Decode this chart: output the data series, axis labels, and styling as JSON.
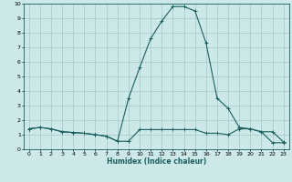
{
  "xlabel": "Humidex (Indice chaleur)",
  "xlim": [
    -0.5,
    23.5
  ],
  "ylim": [
    0,
    10
  ],
  "xticks": [
    0,
    1,
    2,
    3,
    4,
    5,
    6,
    7,
    8,
    9,
    10,
    11,
    12,
    13,
    14,
    15,
    16,
    17,
    18,
    19,
    20,
    21,
    22,
    23
  ],
  "yticks": [
    0,
    1,
    2,
    3,
    4,
    5,
    6,
    7,
    8,
    9,
    10
  ],
  "background_color": "#cce8e8",
  "grid_color": "#aacccc",
  "line_color": "#1a5f5f",
  "series1_x": [
    0,
    1,
    2,
    3,
    4,
    5,
    6,
    7,
    8,
    9,
    10,
    11,
    12,
    13,
    14,
    15,
    16,
    17,
    18,
    19,
    20,
    21,
    22,
    23
  ],
  "series1_y": [
    1.4,
    1.5,
    1.4,
    1.2,
    1.15,
    1.1,
    1.0,
    0.9,
    0.55,
    0.55,
    1.35,
    1.35,
    1.35,
    1.35,
    1.35,
    1.35,
    1.1,
    1.1,
    1.0,
    1.4,
    1.4,
    1.2,
    1.2,
    0.5
  ],
  "series2_x": [
    0,
    1,
    2,
    3,
    4,
    5,
    6,
    7,
    8,
    9,
    10,
    11,
    12,
    13,
    14,
    15,
    16,
    17,
    18,
    19,
    20,
    21,
    22,
    23
  ],
  "series2_y": [
    1.4,
    1.5,
    1.4,
    1.2,
    1.15,
    1.1,
    1.0,
    0.9,
    0.55,
    3.5,
    5.6,
    7.6,
    8.8,
    9.8,
    9.8,
    9.5,
    7.3,
    3.5,
    2.8,
    1.5,
    1.4,
    1.2,
    0.45,
    0.45
  ]
}
